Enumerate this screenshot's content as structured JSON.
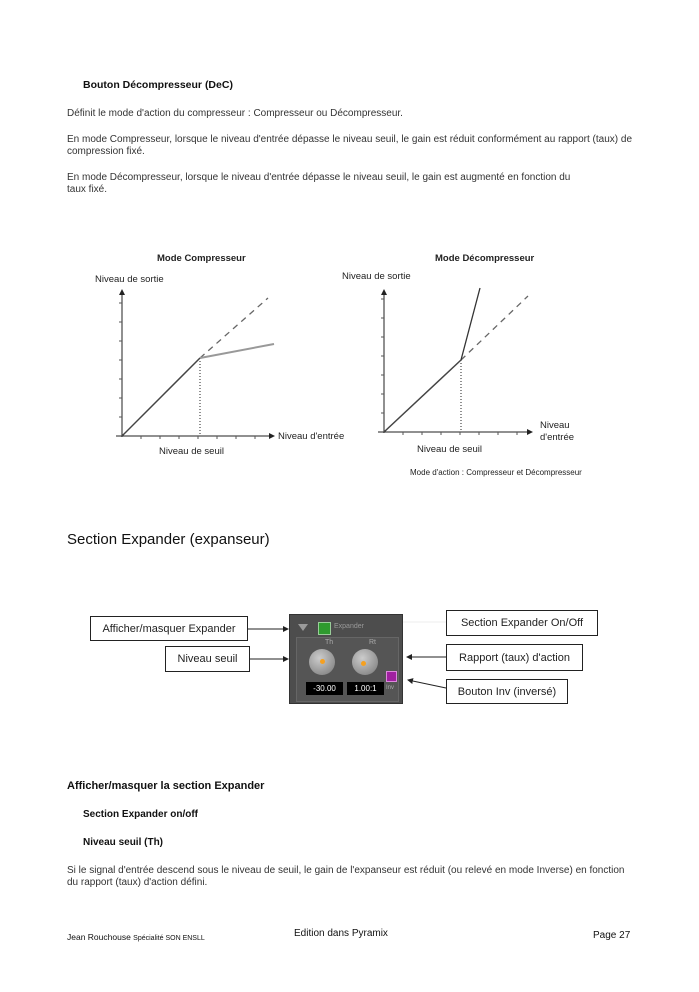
{
  "section1": {
    "heading": "Bouton Décompresseur (DeC)",
    "paragraphs": [
      "Définit le mode d'action du compresseur : Compresseur ou Décompresseur.",
      "En mode Compresseur, lorsque le niveau d'entrée dépasse le niveau seuil, le gain est réduit conformément au rapport (taux) de compression fixé.",
      "En mode Décompresseur, lorsque le niveau d'entrée dépasse le niveau seuil, le gain est augmenté en fonction du taux fixé."
    ]
  },
  "figure": {
    "left": {
      "title": "Mode Compresseur",
      "ylabel": "Niveau de sortie",
      "xlabel": "Niveau d'entrée",
      "threshold": "Niveau de seuil"
    },
    "right": {
      "title": "Mode Décompresseur",
      "ylabel": "Niveau de sortie",
      "xlabel_1": "Niveau",
      "xlabel_2": "d'entrée",
      "threshold": "Niveau de seuil"
    },
    "caption": "Mode d'action : Compresseur et  Décompresseur"
  },
  "section2": {
    "heading": "Section Expander (expanseur)"
  },
  "expander": {
    "panel_title": "Expander",
    "knob_th_label": "Th",
    "knob_rt_label": "Rt",
    "th_value": "-30.00",
    "rt_value": "1.00:1",
    "inv_label": "Inv",
    "on_color": "#2e9a2e",
    "inv_color": "#a020a0",
    "callouts": {
      "show_hide": "Afficher/masquer Expander",
      "threshold": "Niveau seuil",
      "on_off": "Section Expander On/Off",
      "ratio": "Rapport (taux) d'action",
      "inv": "Bouton Inv (inversé)"
    }
  },
  "section3": {
    "heading": "Afficher/masquer la section Expander",
    "sub1": "Section Expander on/off",
    "sub2": "Niveau seuil (Th)",
    "paragraph": "Si le signal d'entrée descend sous le niveau de seuil, le gain de l'expanseur est réduit (ou relevé en mode Inverse) en fonction du rapport (taux) d'action défini."
  },
  "footer": {
    "author": "Jean Rouchouse",
    "author_small": "Spécialité SON ENSLL",
    "center": "Edition dans Pyramix",
    "page": "Page 27"
  }
}
